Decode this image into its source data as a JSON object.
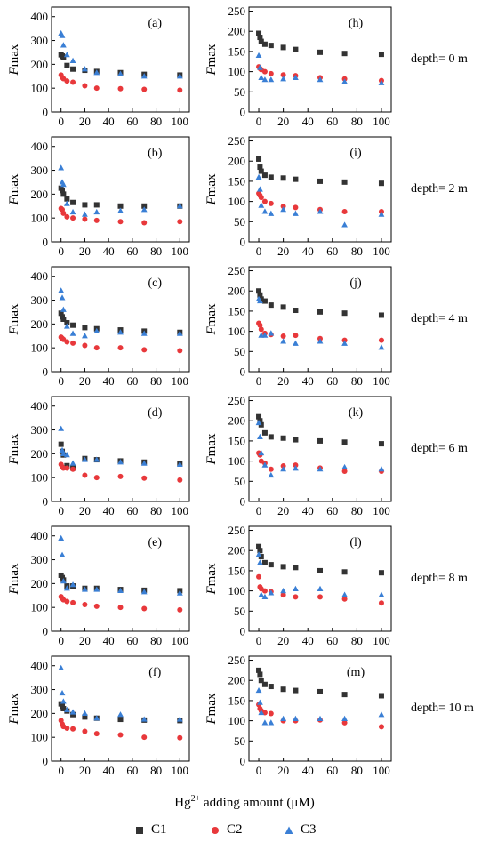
{
  "x_label_pre": "Hg",
  "x_label_sup": "2+",
  "x_label_post": " adding amount (μM)",
  "y_label_italic": "F",
  "y_label_rest": "max",
  "legend": [
    {
      "name": "C1",
      "color": "#333333",
      "marker": "square"
    },
    {
      "name": "C2",
      "color": "#e8383b",
      "marker": "circle"
    },
    {
      "name": "C3",
      "color": "#3a7fd5",
      "marker": "triangle"
    }
  ],
  "depth_labels": [
    "depth= 0 m",
    "depth= 2 m",
    "depth= 4 m",
    "depth= 6 m",
    "depth= 8 m",
    "depth= 10 m"
  ],
  "chart_data": [
    {
      "type": "scatter",
      "panel": "(a)",
      "xlim": [
        -8,
        108
      ],
      "ylim": [
        0,
        440
      ],
      "xticks": [
        0,
        20,
        40,
        60,
        80,
        100
      ],
      "yticks": [
        0,
        100,
        200,
        300,
        400
      ],
      "x": [
        0,
        1,
        2,
        5,
        10,
        20,
        30,
        50,
        70,
        100
      ],
      "series": [
        {
          "name": "C1",
          "values": [
            240,
            235,
            230,
            195,
            180,
            175,
            170,
            165,
            158,
            155
          ]
        },
        {
          "name": "C2",
          "values": [
            155,
            145,
            140,
            130,
            125,
            110,
            100,
            98,
            95,
            92
          ]
        },
        {
          "name": "C3",
          "values": [
            330,
            320,
            280,
            240,
            215,
            180,
            165,
            160,
            150,
            150
          ]
        }
      ]
    },
    {
      "type": "scatter",
      "panel": "(b)",
      "xlim": [
        -8,
        108
      ],
      "ylim": [
        0,
        440
      ],
      "xticks": [
        0,
        20,
        40,
        60,
        80,
        100
      ],
      "yticks": [
        0,
        100,
        200,
        300,
        400
      ],
      "x": [
        0,
        1,
        2,
        5,
        10,
        20,
        30,
        50,
        70,
        100
      ],
      "series": [
        {
          "name": "C1",
          "values": [
            225,
            215,
            200,
            180,
            165,
            155,
            155,
            150,
            150,
            150
          ]
        },
        {
          "name": "C2",
          "values": [
            140,
            135,
            120,
            105,
            100,
            95,
            90,
            85,
            80,
            85
          ]
        },
        {
          "name": "C3",
          "values": [
            310,
            250,
            240,
            160,
            125,
            115,
            125,
            130,
            135,
            150
          ]
        }
      ]
    },
    {
      "type": "scatter",
      "panel": "(c)",
      "xlim": [
        -8,
        108
      ],
      "ylim": [
        0,
        440
      ],
      "xticks": [
        0,
        20,
        40,
        60,
        80,
        100
      ],
      "yticks": [
        0,
        100,
        200,
        300,
        400
      ],
      "x": [
        0,
        1,
        2,
        5,
        10,
        20,
        30,
        50,
        70,
        100
      ],
      "series": [
        {
          "name": "C1",
          "values": [
            245,
            230,
            220,
            205,
            195,
            185,
            180,
            175,
            170,
            165
          ]
        },
        {
          "name": "C2",
          "values": [
            145,
            140,
            135,
            125,
            120,
            110,
            100,
            100,
            92,
            88
          ]
        },
        {
          "name": "C3",
          "values": [
            340,
            310,
            260,
            190,
            160,
            150,
            170,
            165,
            160,
            160
          ]
        }
      ]
    },
    {
      "type": "scatter",
      "panel": "(d)",
      "xlim": [
        -8,
        108
      ],
      "ylim": [
        0,
        440
      ],
      "xticks": [
        0,
        20,
        40,
        60,
        80,
        100
      ],
      "yticks": [
        0,
        100,
        200,
        300,
        400
      ],
      "x": [
        0,
        1,
        2,
        5,
        10,
        20,
        30,
        50,
        70,
        100
      ],
      "series": [
        {
          "name": "C1",
          "values": [
            240,
            210,
            195,
            150,
            140,
            180,
            175,
            170,
            165,
            160
          ]
        },
        {
          "name": "C2",
          "values": [
            155,
            145,
            140,
            140,
            135,
            110,
            100,
            105,
            98,
            90
          ]
        },
        {
          "name": "C3",
          "values": [
            305,
            215,
            200,
            195,
            160,
            175,
            175,
            165,
            160,
            155
          ]
        }
      ]
    },
    {
      "type": "scatter",
      "panel": "(e)",
      "xlim": [
        -8,
        108
      ],
      "ylim": [
        0,
        440
      ],
      "xticks": [
        0,
        20,
        40,
        60,
        80,
        100
      ],
      "yticks": [
        0,
        100,
        200,
        300,
        400
      ],
      "x": [
        0,
        1,
        2,
        5,
        10,
        20,
        30,
        50,
        70,
        100
      ],
      "series": [
        {
          "name": "C1",
          "values": [
            235,
            225,
            215,
            190,
            190,
            180,
            180,
            175,
            172,
            170
          ]
        },
        {
          "name": "C2",
          "values": [
            145,
            138,
            132,
            125,
            120,
            112,
            105,
            100,
            95,
            90
          ]
        },
        {
          "name": "C3",
          "values": [
            390,
            320,
            210,
            180,
            195,
            175,
            175,
            170,
            165,
            160
          ]
        }
      ]
    },
    {
      "type": "scatter",
      "panel": "(f)",
      "xlim": [
        -8,
        108
      ],
      "ylim": [
        0,
        440
      ],
      "xticks": [
        0,
        20,
        40,
        60,
        80,
        100
      ],
      "yticks": [
        0,
        100,
        200,
        300,
        400
      ],
      "x": [
        0,
        1,
        2,
        5,
        10,
        20,
        30,
        50,
        70,
        100
      ],
      "series": [
        {
          "name": "C1",
          "values": [
            240,
            230,
            220,
            210,
            195,
            185,
            180,
            175,
            172,
            170
          ]
        },
        {
          "name": "C2",
          "values": [
            170,
            155,
            145,
            138,
            135,
            125,
            115,
            110,
            100,
            98
          ]
        },
        {
          "name": "C3",
          "values": [
            390,
            285,
            250,
            215,
            205,
            200,
            180,
            195,
            175,
            175
          ]
        }
      ]
    },
    {
      "type": "scatter",
      "panel": "(h)",
      "xlim": [
        -8,
        108
      ],
      "ylim": [
        0,
        260
      ],
      "xticks": [
        0,
        20,
        40,
        60,
        80,
        100
      ],
      "yticks": [
        0,
        50,
        100,
        150,
        200,
        250
      ],
      "x": [
        0,
        1,
        2,
        5,
        10,
        20,
        30,
        50,
        70,
        100
      ],
      "series": [
        {
          "name": "C1",
          "values": [
            195,
            185,
            175,
            168,
            165,
            160,
            155,
            148,
            145,
            143
          ]
        },
        {
          "name": "C2",
          "values": [
            112,
            108,
            105,
            100,
            95,
            92,
            90,
            85,
            82,
            78
          ]
        },
        {
          "name": "C3",
          "values": [
            140,
            110,
            85,
            80,
            80,
            82,
            85,
            80,
            75,
            72
          ]
        }
      ]
    },
    {
      "type": "scatter",
      "panel": "(i)",
      "xlim": [
        -8,
        108
      ],
      "ylim": [
        0,
        260
      ],
      "xticks": [
        0,
        20,
        40,
        60,
        80,
        100
      ],
      "yticks": [
        0,
        50,
        100,
        150,
        200,
        250
      ],
      "x": [
        0,
        1,
        2,
        5,
        10,
        20,
        30,
        50,
        70,
        100
      ],
      "series": [
        {
          "name": "C1",
          "values": [
            205,
            185,
            175,
            165,
            160,
            158,
            155,
            150,
            148,
            145
          ]
        },
        {
          "name": "C2",
          "values": [
            120,
            115,
            110,
            100,
            95,
            88,
            85,
            80,
            75,
            75
          ]
        },
        {
          "name": "C3",
          "values": [
            160,
            130,
            90,
            75,
            70,
            80,
            70,
            75,
            42,
            68
          ]
        }
      ]
    },
    {
      "type": "scatter",
      "panel": "(j)",
      "xlim": [
        -8,
        108
      ],
      "ylim": [
        0,
        260
      ],
      "xticks": [
        0,
        20,
        40,
        60,
        80,
        100
      ],
      "yticks": [
        0,
        50,
        100,
        150,
        200,
        250
      ],
      "x": [
        0,
        1,
        2,
        5,
        10,
        20,
        30,
        50,
        70,
        100
      ],
      "series": [
        {
          "name": "C1",
          "values": [
            200,
            190,
            180,
            175,
            165,
            160,
            152,
            148,
            145,
            140
          ]
        },
        {
          "name": "C2",
          "values": [
            120,
            115,
            105,
            95,
            92,
            88,
            90,
            82,
            78,
            78
          ]
        },
        {
          "name": "C3",
          "values": [
            180,
            175,
            90,
            90,
            95,
            75,
            70,
            75,
            70,
            60
          ]
        }
      ]
    },
    {
      "type": "scatter",
      "panel": "(k)",
      "xlim": [
        -8,
        108
      ],
      "ylim": [
        0,
        260
      ],
      "xticks": [
        0,
        20,
        40,
        60,
        80,
        100
      ],
      "yticks": [
        0,
        50,
        100,
        150,
        200,
        250
      ],
      "x": [
        0,
        1,
        2,
        5,
        10,
        20,
        30,
        50,
        70,
        100
      ],
      "series": [
        {
          "name": "C1",
          "values": [
            210,
            200,
            190,
            170,
            160,
            157,
            153,
            150,
            147,
            143
          ]
        },
        {
          "name": "C2",
          "values": [
            120,
            115,
            100,
            95,
            80,
            88,
            90,
            83,
            75,
            75
          ]
        },
        {
          "name": "C3",
          "values": [
            195,
            160,
            120,
            90,
            65,
            80,
            82,
            80,
            85,
            80
          ]
        }
      ]
    },
    {
      "type": "scatter",
      "panel": "(l)",
      "xlim": [
        -8,
        108
      ],
      "ylim": [
        0,
        260
      ],
      "xticks": [
        0,
        20,
        40,
        60,
        80,
        100
      ],
      "yticks": [
        0,
        50,
        100,
        150,
        200,
        250
      ],
      "x": [
        0,
        1,
        2,
        5,
        10,
        20,
        30,
        50,
        70,
        100
      ],
      "series": [
        {
          "name": "C1",
          "values": [
            210,
            200,
            185,
            170,
            165,
            160,
            158,
            150,
            147,
            145
          ]
        },
        {
          "name": "C2",
          "values": [
            135,
            110,
            105,
            100,
            98,
            90,
            85,
            85,
            80,
            70
          ]
        },
        {
          "name": "C3",
          "values": [
            190,
            170,
            90,
            85,
            95,
            100,
            105,
            105,
            90,
            90
          ]
        }
      ]
    },
    {
      "type": "scatter",
      "panel": "(m)",
      "xlim": [
        -8,
        108
      ],
      "ylim": [
        0,
        260
      ],
      "xticks": [
        0,
        20,
        40,
        60,
        80,
        100
      ],
      "yticks": [
        0,
        50,
        100,
        150,
        200,
        250
      ],
      "x": [
        0,
        1,
        2,
        5,
        10,
        20,
        30,
        50,
        70,
        100
      ],
      "series": [
        {
          "name": "C1",
          "values": [
            225,
            215,
            200,
            190,
            185,
            178,
            175,
            172,
            165,
            162
          ]
        },
        {
          "name": "C2",
          "values": [
            140,
            130,
            125,
            120,
            118,
            100,
            100,
            102,
            95,
            85
          ]
        },
        {
          "name": "C3",
          "values": [
            175,
            145,
            120,
            95,
            95,
            105,
            105,
            105,
            105,
            115
          ]
        }
      ]
    }
  ]
}
